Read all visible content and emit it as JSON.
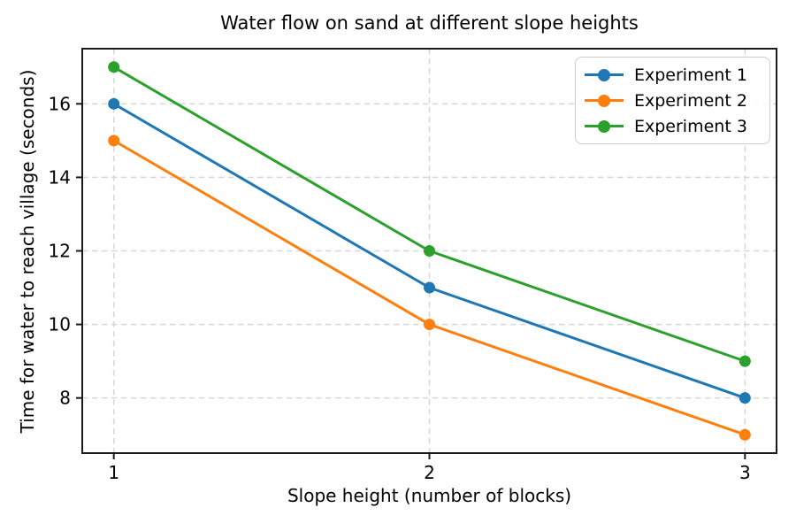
{
  "chart_data": {
    "type": "line",
    "title": "Water flow on sand at different slope heights",
    "xlabel": "Slope height (number of blocks)",
    "ylabel": "Time for water to reach village (seconds)",
    "x": [
      1,
      2,
      3
    ],
    "series": [
      {
        "name": "Experiment 1",
        "values": [
          16,
          11,
          8
        ],
        "color": "#1f77b4"
      },
      {
        "name": "Experiment 2",
        "values": [
          15,
          10,
          7
        ],
        "color": "#ff7f0e"
      },
      {
        "name": "Experiment 3",
        "values": [
          17,
          12,
          9
        ],
        "color": "#2ca02c"
      }
    ],
    "xticks": [
      1,
      2,
      3
    ],
    "yticks": [
      8,
      10,
      12,
      14,
      16
    ],
    "xlim": [
      0.9,
      3.1
    ],
    "ylim": [
      6.5,
      17.5
    ],
    "grid": true,
    "grid_style": "dashed",
    "grid_color": "#d7d7d7",
    "spine_color": "#1a1a1a",
    "background_color": "#ffffff",
    "marker": "circle",
    "legend": {
      "position": "upper right",
      "labels": [
        "Experiment 1",
        "Experiment 2",
        "Experiment 3"
      ]
    }
  }
}
